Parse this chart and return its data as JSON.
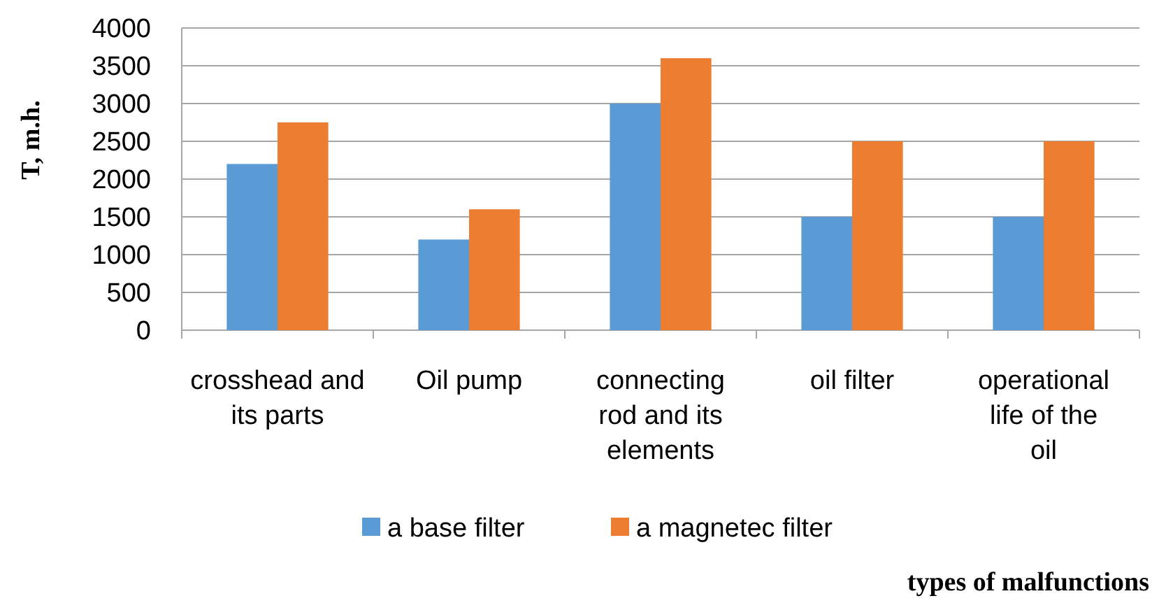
{
  "chart_data": {
    "type": "bar",
    "xlabel": "types of malfunctions",
    "ylabel": "T, m.h.",
    "categories": [
      "crosshead and its parts",
      "Oil pump",
      "connecting rod and its elements",
      "oil filter",
      "operational life of the oil"
    ],
    "series": [
      {
        "name": "a base filter",
        "color": "#5b9bd5",
        "values": [
          2200,
          1200,
          3000,
          1500,
          1500
        ]
      },
      {
        "name": "a magnetec filter",
        "color": "#ed7d31",
        "values": [
          2750,
          1600,
          3600,
          2500,
          2500
        ]
      }
    ],
    "ylim": [
      0,
      4000
    ],
    "yticks": [
      0,
      500,
      1000,
      1500,
      2000,
      2500,
      3000,
      3500,
      4000
    ],
    "grid": "y",
    "legend": "bottom"
  }
}
